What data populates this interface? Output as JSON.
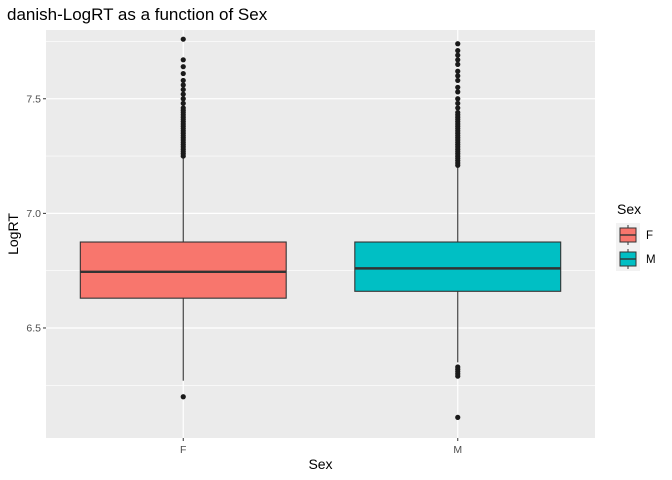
{
  "chart_data": {
    "type": "boxplot",
    "title": "danish-LogRT as a function of Sex",
    "xlabel": "Sex",
    "ylabel": "LogRT",
    "categories": [
      "F",
      "M"
    ],
    "ylim": [
      6.02,
      7.8
    ],
    "y_ticks": [
      6.5,
      7.0,
      7.5
    ],
    "y_tick_labels": [
      "6.5",
      "7.0",
      "7.5"
    ],
    "grid": true,
    "legend": {
      "title": "Sex",
      "position": "right",
      "entries": [
        {
          "label": "F",
          "color": "#F8766D"
        },
        {
          "label": "M",
          "color": "#00BFC4"
        }
      ]
    },
    "boxes": [
      {
        "category": "F",
        "color": "#F8766D",
        "min": 6.27,
        "q1": 6.63,
        "median": 6.745,
        "q3": 6.875,
        "max": 7.24,
        "outliers": [
          7.76,
          7.67,
          7.64,
          7.61,
          7.58,
          7.56,
          7.54,
          7.52,
          7.5,
          7.48,
          7.46,
          7.45,
          7.44,
          7.43,
          7.42,
          7.41,
          7.4,
          7.39,
          7.38,
          7.37,
          7.36,
          7.35,
          7.34,
          7.33,
          7.32,
          7.31,
          7.3,
          7.29,
          7.28,
          7.27,
          7.26,
          7.25,
          6.2
        ]
      },
      {
        "category": "M",
        "color": "#00BFC4",
        "min": 6.35,
        "q1": 6.66,
        "median": 6.76,
        "q3": 6.875,
        "max": 7.2,
        "outliers": [
          7.74,
          7.71,
          7.69,
          7.67,
          7.65,
          7.62,
          7.6,
          7.58,
          7.55,
          7.53,
          7.5,
          7.48,
          7.46,
          7.44,
          7.43,
          7.42,
          7.41,
          7.4,
          7.39,
          7.38,
          7.37,
          7.36,
          7.35,
          7.34,
          7.33,
          7.32,
          7.31,
          7.3,
          7.29,
          7.28,
          7.27,
          7.26,
          7.25,
          7.24,
          7.23,
          7.22,
          7.21,
          6.33,
          6.32,
          6.31,
          6.3,
          6.29,
          6.11
        ]
      }
    ]
  },
  "colors": {
    "panel_background": "#EBEBEB",
    "grid": "#FFFFFF",
    "box_outline": "#333333",
    "outlier": "#1a1a1a"
  }
}
